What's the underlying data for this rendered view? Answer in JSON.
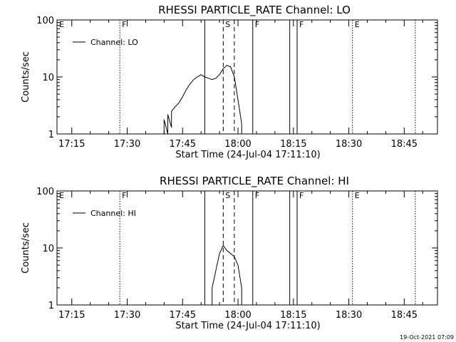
{
  "footer_stamp": "19-Oct-2021 07:09",
  "chart_data": [
    {
      "type": "line",
      "title": "RHESSI PARTICLE_RATE Channel: LO",
      "xlabel": "Start Time (24-Jul-04 17:11:10)",
      "ylabel": "Counts/sec",
      "legend": "Channel: LO",
      "legend_position": "top-left",
      "y_scale": "log",
      "ylim": [
        1,
        100
      ],
      "y_ticks": [
        {
          "v": 1,
          "label": "1"
        },
        {
          "v": 10,
          "label": "10"
        },
        {
          "v": 100,
          "label": "100"
        }
      ],
      "xlim": [
        "17:11",
        "18:54"
      ],
      "x_ticks": [
        "17:15",
        "17:30",
        "17:45",
        "18:00",
        "18:15",
        "18:30",
        "18:45"
      ],
      "markers": [
        {
          "time": "17:11",
          "label": "E",
          "style": "solid"
        },
        {
          "time": "17:28",
          "label": "F",
          "style": "dotted"
        },
        {
          "time": "17:51",
          "label": "",
          "style": "solid"
        },
        {
          "time": "17:56",
          "label": "S",
          "style": "dashed"
        },
        {
          "time": "17:59",
          "label": "",
          "style": "dashed"
        },
        {
          "time": "18:04",
          "label": "F",
          "style": "solid"
        },
        {
          "time": "18:14",
          "label": "",
          "style": "solid"
        },
        {
          "time": "18:16",
          "label": "F",
          "style": "solid"
        },
        {
          "time": "18:31",
          "label": "E",
          "style": "dotted"
        },
        {
          "time": "18:48",
          "label": "",
          "style": "dotted"
        }
      ],
      "series": [
        {
          "x": [
            "17:40",
            "17:40",
            "17:41",
            "17:41",
            "17:42",
            "17:42",
            "17:43",
            "17:44",
            "17:45",
            "17:46",
            "17:47",
            "17:48",
            "17:49",
            "17:50",
            "17:51",
            "17:52",
            "17:53",
            "17:54",
            "17:55",
            "17:56",
            "17:57",
            "17:58",
            "17:59",
            "18:00",
            "18:01",
            "18:01"
          ],
          "y": [
            1,
            1.8,
            1,
            2.2,
            1.3,
            2.5,
            3,
            3.5,
            4.5,
            6,
            7.5,
            9,
            10,
            11,
            10,
            9.5,
            9,
            9.5,
            11,
            14,
            16,
            15,
            10,
            4,
            1.5,
            1
          ]
        }
      ]
    },
    {
      "type": "line",
      "title": "RHESSI PARTICLE_RATE Channel: HI",
      "xlabel": "Start Time (24-Jul-04 17:11:10)",
      "ylabel": "Counts/sec",
      "legend": "Channel: HI",
      "legend_position": "top-left",
      "y_scale": "log",
      "ylim": [
        1,
        100
      ],
      "y_ticks": [
        {
          "v": 1,
          "label": "1"
        },
        {
          "v": 10,
          "label": "10"
        },
        {
          "v": 100,
          "label": "100"
        }
      ],
      "xlim": [
        "17:11",
        "18:54"
      ],
      "x_ticks": [
        "17:15",
        "17:30",
        "17:45",
        "18:00",
        "18:15",
        "18:30",
        "18:45"
      ],
      "markers": [
        {
          "time": "17:11",
          "label": "E",
          "style": "solid"
        },
        {
          "time": "17:28",
          "label": "F",
          "style": "dotted"
        },
        {
          "time": "17:51",
          "label": "",
          "style": "solid"
        },
        {
          "time": "17:56",
          "label": "S",
          "style": "dashed"
        },
        {
          "time": "17:59",
          "label": "",
          "style": "dashed"
        },
        {
          "time": "18:04",
          "label": "F",
          "style": "solid"
        },
        {
          "time": "18:14",
          "label": "",
          "style": "solid"
        },
        {
          "time": "18:16",
          "label": "F",
          "style": "solid"
        },
        {
          "time": "18:31",
          "label": "E",
          "style": "dotted"
        },
        {
          "time": "18:48",
          "label": "",
          "style": "dotted"
        }
      ],
      "series": [
        {
          "x": [
            "17:53",
            "17:53",
            "17:54",
            "17:55",
            "17:56",
            "17:57",
            "17:58",
            "17:59",
            "18:00",
            "18:01",
            "18:01"
          ],
          "y": [
            1,
            2,
            4,
            8,
            11,
            9,
            8,
            7,
            5,
            2,
            1
          ]
        }
      ]
    }
  ]
}
